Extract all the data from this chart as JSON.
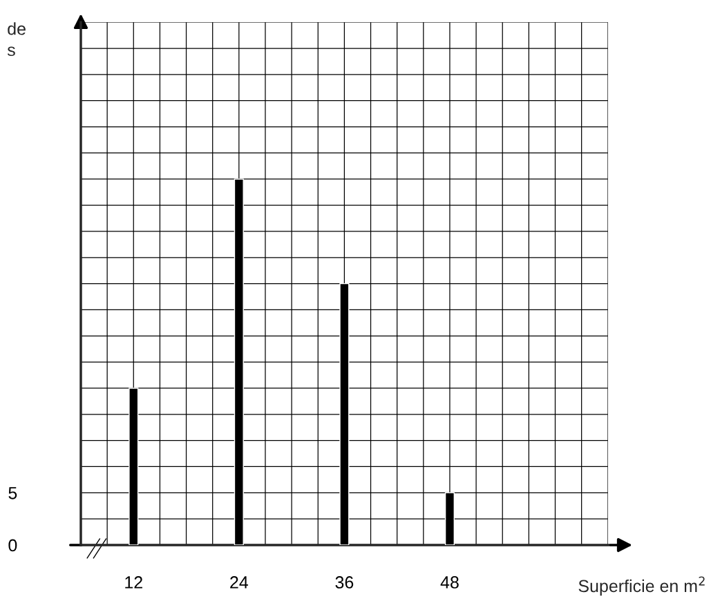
{
  "chart_data": {
    "type": "bar",
    "xlabel": "Superficie en m$^{2}$",
    "ylabel": "de\ns",
    "x": [
      12,
      24,
      36,
      48
    ],
    "values": [
      15,
      35,
      25,
      5
    ],
    "color": "#000000",
    "xlim": [
      6,
      66
    ],
    "xticks": [
      12,
      24,
      36,
      48
    ],
    "ylim": [
      0,
      50
    ],
    "yticks": [
      0,
      5
    ],
    "grid": true
  }
}
